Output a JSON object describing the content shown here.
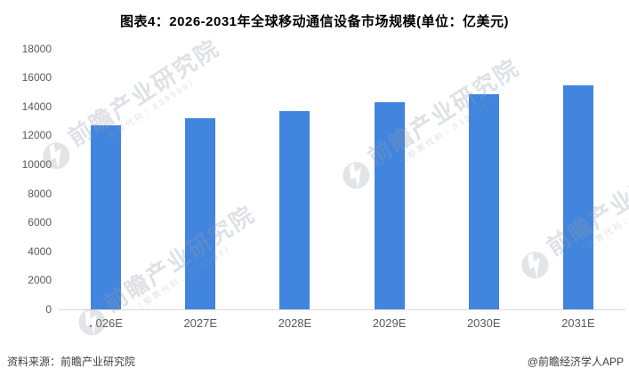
{
  "page_title": "图表4：2026-2031年全球移动通信设备市场规模(单位：亿美元)",
  "chart_data": {
    "type": "bar",
    "title": "图表4：2026-2031年全球移动通信设备市场规模(单位：亿美元)",
    "unit": "亿美元",
    "categories": [
      "2026E",
      "2027E",
      "2028E",
      "2029E",
      "2030E",
      "2031E"
    ],
    "values": [
      12700,
      13200,
      13700,
      14300,
      14850,
      15450
    ],
    "xlabel": "",
    "ylabel": "",
    "ylim": [
      0,
      18000
    ],
    "yticks": [
      0,
      2000,
      4000,
      6000,
      8000,
      10000,
      12000,
      14000,
      16000,
      18000
    ],
    "grid": false,
    "legend": false,
    "bar_color": "#4285DE"
  },
  "footer": {
    "source": "资料来源：前瞻产业研究院",
    "credit": "@前瞻经济学人APP"
  },
  "watermark": {
    "brand": "前瞻产业研究院",
    "subtext": "（股票代码：839599）"
  },
  "colors": {
    "bar": "#4285DE",
    "axis_line": "#D9D9D9",
    "axis_text": "#595959",
    "title_text": "#000000",
    "background": "#FFFFFF"
  }
}
